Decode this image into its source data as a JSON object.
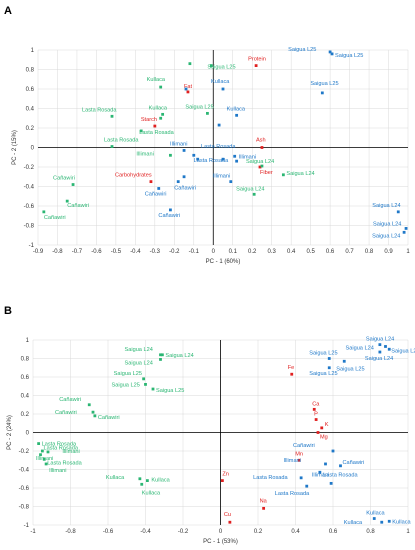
{
  "colors": {
    "green": "#2bb673",
    "blue": "#1f78c8",
    "red": "#e02020",
    "axis": "#000000",
    "grid": "#d9d9d9"
  },
  "chart_data": [
    {
      "type": "scatter",
      "panel": "A",
      "xlabel": "PC - 1 (60%)",
      "ylabel": "PC - 2 (15%)",
      "xlim": [
        -0.9,
        1.0
      ],
      "ylim": [
        -1.0,
        1.0
      ],
      "xticks": [
        -0.9,
        -0.8,
        -0.7,
        -0.6,
        -0.5,
        -0.4,
        -0.3,
        -0.2,
        -0.1,
        0,
        0.1,
        0.2,
        0.3,
        0.4,
        0.5,
        0.6,
        0.7,
        0.8,
        0.9,
        1
      ],
      "xtick_labels": [
        "-0.9",
        "-0.8",
        "-0.7",
        "-0.6",
        "-0.5",
        "-0.4",
        "-0.3",
        "-0.2",
        "-0.1",
        "0",
        "0.1",
        "0.2",
        "0.3",
        "0.4",
        "0.5",
        "0.6",
        "0.7",
        "0.8",
        "0.9",
        "1"
      ],
      "yticks": [
        -1,
        -0.8,
        -0.6,
        -0.4,
        -0.2,
        0,
        0.2,
        0.4,
        0.6,
        0.8,
        1
      ],
      "ytick_labels": [
        "-1",
        "-0.8",
        "-0.6",
        "-0.4",
        "-0.2",
        "0",
        "0.2",
        "0.4",
        "0.6",
        "0.8",
        "1"
      ],
      "points": [
        {
          "x": 0.22,
          "y": 0.84,
          "label": "Protein",
          "color": "red",
          "dx": -8,
          "dy": -5
        },
        {
          "x": -0.13,
          "y": 0.57,
          "label": "Fat",
          "color": "red",
          "dx": -4,
          "dy": -4
        },
        {
          "x": -0.3,
          "y": 0.22,
          "label": "Starch",
          "color": "red",
          "dx": -14,
          "dy": -5
        },
        {
          "x": -0.32,
          "y": -0.35,
          "label": "Carbohydrates",
          "color": "red",
          "dx": -36,
          "dy": -5
        },
        {
          "x": 0.25,
          "y": 0.0,
          "label": "Ash",
          "color": "red",
          "dx": -6,
          "dy": -6
        },
        {
          "x": 0.24,
          "y": -0.2,
          "label": "Fiber",
          "color": "red",
          "dx": 0,
          "dy": 7
        },
        {
          "x": 0.6,
          "y": 0.98,
          "label": "Saigua L25",
          "color": "blue",
          "dx": -42,
          "dy": -1
        },
        {
          "x": 0.61,
          "y": 0.96,
          "label": "Saigua L25",
          "color": "blue",
          "dx": 3,
          "dy": 3
        },
        {
          "x": 0.56,
          "y": 0.56,
          "label": "Saigua L25",
          "color": "blue",
          "dx": -12,
          "dy": -8
        },
        {
          "x": -0.14,
          "y": 0.6,
          "label": "",
          "color": "blue",
          "dx": 0,
          "dy": 0
        },
        {
          "x": 0.05,
          "y": 0.6,
          "label": "Kullaca",
          "color": "blue",
          "dx": -12,
          "dy": -6
        },
        {
          "x": 0.12,
          "y": 0.33,
          "label": "Kullaca",
          "color": "blue",
          "dx": -10,
          "dy": -5
        },
        {
          "x": 0.03,
          "y": 0.23,
          "label": "",
          "color": "blue",
          "dx": 0,
          "dy": 0
        },
        {
          "x": -0.15,
          "y": -0.03,
          "label": "Illimani",
          "color": "blue",
          "dx": -14,
          "dy": -5
        },
        {
          "x": -0.1,
          "y": -0.08,
          "label": "",
          "color": "blue",
          "dx": 0,
          "dy": 0
        },
        {
          "x": -0.08,
          "y": -0.12,
          "label": "Lasta Rosada",
          "color": "blue",
          "dx": -4,
          "dy": 3
        },
        {
          "x": 0.05,
          "y": -0.12,
          "label": "Lasta Rosada",
          "color": "blue",
          "dx": -22,
          "dy": -11
        },
        {
          "x": 0.11,
          "y": -0.09,
          "label": "Illimani",
          "color": "blue",
          "dx": 4,
          "dy": 2
        },
        {
          "x": 0.12,
          "y": -0.14,
          "label": "",
          "color": "blue",
          "dx": 0,
          "dy": 0
        },
        {
          "x": 0.09,
          "y": -0.35,
          "label": "Illimani",
          "color": "blue",
          "dx": -18,
          "dy": -4
        },
        {
          "x": -0.15,
          "y": -0.3,
          "label": "",
          "color": "blue",
          "dx": 0,
          "dy": 0
        },
        {
          "x": -0.18,
          "y": -0.35,
          "label": "Cañawiri",
          "color": "blue",
          "dx": -4,
          "dy": 8
        },
        {
          "x": -0.28,
          "y": -0.42,
          "label": "Cañawiri",
          "color": "blue",
          "dx": -14,
          "dy": 7
        },
        {
          "x": -0.22,
          "y": -0.64,
          "label": "Cañawiri",
          "color": "blue",
          "dx": -12,
          "dy": 7
        },
        {
          "x": 0.95,
          "y": -0.66,
          "label": "Saigua L24",
          "color": "blue",
          "dx": -26,
          "dy": -5
        },
        {
          "x": 0.99,
          "y": -0.83,
          "label": "Saigua L24",
          "color": "blue",
          "dx": -33,
          "dy": -3
        },
        {
          "x": 0.98,
          "y": -0.87,
          "label": "Saigua L24",
          "color": "blue",
          "dx": -32,
          "dy": 5
        },
        {
          "x": -0.12,
          "y": 0.86,
          "label": "",
          "color": "green",
          "dx": 0,
          "dy": 0
        },
        {
          "x": -0.01,
          "y": 0.84,
          "label": "Saigua L25",
          "color": "green",
          "dx": -4,
          "dy": 3
        },
        {
          "x": -0.27,
          "y": 0.62,
          "label": "Kullaca",
          "color": "green",
          "dx": -14,
          "dy": -6
        },
        {
          "x": -0.26,
          "y": 0.34,
          "label": "Kullaca",
          "color": "green",
          "dx": -14,
          "dy": -5
        },
        {
          "x": -0.27,
          "y": 0.3,
          "label": "",
          "color": "green",
          "dx": 0,
          "dy": 0
        },
        {
          "x": -0.03,
          "y": 0.35,
          "label": "Saigua L25",
          "color": "green",
          "dx": -22,
          "dy": -5
        },
        {
          "x": -0.52,
          "y": 0.32,
          "label": "Lasta Rosada",
          "color": "green",
          "dx": -30,
          "dy": -5
        },
        {
          "x": -0.37,
          "y": 0.17,
          "label": "Lasta Rosada",
          "color": "green",
          "dx": -2,
          "dy": 3
        },
        {
          "x": -0.52,
          "y": 0.01,
          "label": "Lasta Rosada",
          "color": "green",
          "dx": -8,
          "dy": -5
        },
        {
          "x": -0.22,
          "y": -0.08,
          "label": "Illimani",
          "color": "green",
          "dx": -34,
          "dy": 0
        },
        {
          "x": 0.25,
          "y": -0.19,
          "label": "Saigua L24",
          "color": "green",
          "dx": -16,
          "dy": -3
        },
        {
          "x": 0.36,
          "y": -0.28,
          "label": "Saigua L24",
          "color": "green",
          "dx": 3,
          "dy": 0
        },
        {
          "x": 0.21,
          "y": -0.48,
          "label": "Saigua L24",
          "color": "green",
          "dx": -18,
          "dy": -4
        },
        {
          "x": -0.72,
          "y": -0.38,
          "label": "Cañawiri",
          "color": "green",
          "dx": -20,
          "dy": -5
        },
        {
          "x": -0.75,
          "y": -0.55,
          "label": "Cañawiri",
          "color": "green",
          "dx": 0,
          "dy": 6
        },
        {
          "x": -0.87,
          "y": -0.66,
          "label": "Cañawiri",
          "color": "green",
          "dx": 0,
          "dy": 7
        }
      ]
    },
    {
      "type": "scatter",
      "panel": "B",
      "xlabel": "PC - 1 (53%)",
      "ylabel": "PC - 2 (24%)",
      "xlim": [
        -1.0,
        1.0
      ],
      "ylim": [
        -1.0,
        1.0
      ],
      "xticks": [
        -1,
        -0.8,
        -0.6,
        -0.4,
        -0.2,
        0,
        0.2,
        0.4,
        0.6,
        0.8,
        1
      ],
      "xtick_labels": [
        "-1",
        "-0.8",
        "-0.6",
        "-0.4",
        "-0.2",
        "0",
        "0.2",
        "0.4",
        "0.6",
        "0.8",
        "1"
      ],
      "yticks": [
        -1,
        -0.8,
        -0.6,
        -0.4,
        -0.2,
        0,
        0.2,
        0.4,
        0.6,
        0.8,
        1
      ],
      "ytick_labels": [
        "-1",
        "-0.8",
        "-0.6",
        "-0.4",
        "-0.2",
        "0",
        "0.2",
        "0.4",
        "0.6",
        "0.8",
        "1"
      ],
      "points": [
        {
          "x": 0.38,
          "y": 0.63,
          "label": "Fe",
          "color": "red",
          "dx": -4,
          "dy": -5
        },
        {
          "x": 0.5,
          "y": 0.25,
          "label": "Ca",
          "color": "red",
          "dx": -2,
          "dy": -4
        },
        {
          "x": 0.51,
          "y": 0.14,
          "label": "P",
          "color": "red",
          "dx": -2,
          "dy": -4
        },
        {
          "x": 0.54,
          "y": 0.05,
          "label": "K",
          "color": "red",
          "dx": 3,
          "dy": -2
        },
        {
          "x": 0.52,
          "y": 0.0,
          "label": "Mg",
          "color": "red",
          "dx": 2,
          "dy": 6
        },
        {
          "x": 0.42,
          "y": -0.3,
          "label": "Mn",
          "color": "red",
          "dx": -4,
          "dy": -5
        },
        {
          "x": 0.01,
          "y": -0.52,
          "label": "Zn",
          "color": "red",
          "dx": 0,
          "dy": -5
        },
        {
          "x": 0.23,
          "y": -0.82,
          "label": "Na",
          "color": "red",
          "dx": -4,
          "dy": -6
        },
        {
          "x": 0.05,
          "y": -0.97,
          "label": "Cu",
          "color": "red",
          "dx": -6,
          "dy": -6
        },
        {
          "x": 0.85,
          "y": 0.95,
          "label": "Saigua L24",
          "color": "blue",
          "dx": -14,
          "dy": -4
        },
        {
          "x": 0.88,
          "y": 0.93,
          "label": "Saigua L24",
          "color": "blue",
          "dx": -40,
          "dy": 3
        },
        {
          "x": 0.9,
          "y": 0.9,
          "label": "Saigua L24",
          "color": "blue",
          "dx": 2,
          "dy": 3
        },
        {
          "x": 0.85,
          "y": 0.87,
          "label": "Saigua L24",
          "color": "blue",
          "dx": -15,
          "dy": 8
        },
        {
          "x": 0.58,
          "y": 0.8,
          "label": "Saigua L25",
          "color": "blue",
          "dx": -20,
          "dy": -4
        },
        {
          "x": 0.66,
          "y": 0.77,
          "label": "Saigua L25",
          "color": "blue",
          "dx": -8,
          "dy": 9
        },
        {
          "x": 0.58,
          "y": 0.7,
          "label": "Saigua L25",
          "color": "blue",
          "dx": -20,
          "dy": 7
        },
        {
          "x": 0.6,
          "y": -0.2,
          "label": "Cañawiri",
          "color": "blue",
          "dx": -40,
          "dy": -4
        },
        {
          "x": 0.64,
          "y": -0.36,
          "label": "Cañawiri",
          "color": "blue",
          "dx": 2,
          "dy": -2
        },
        {
          "x": 0.56,
          "y": -0.34,
          "label": "Illimani",
          "color": "blue",
          "dx": -42,
          "dy": -2
        },
        {
          "x": 0.53,
          "y": -0.43,
          "label": "Illimani",
          "color": "blue",
          "dx": -8,
          "dy": 4
        },
        {
          "x": 0.43,
          "y": -0.49,
          "label": "Lasta Rosada",
          "color": "blue",
          "dx": -48,
          "dy": 1
        },
        {
          "x": 0.46,
          "y": -0.58,
          "label": "Lasta Rosada",
          "color": "blue",
          "dx": -32,
          "dy": 9
        },
        {
          "x": 0.59,
          "y": -0.55,
          "label": "Lasta Rosada",
          "color": "blue",
          "dx": -8,
          "dy": -7
        },
        {
          "x": 0.82,
          "y": -0.93,
          "label": "Kullaca",
          "color": "blue",
          "dx": -8,
          "dy": -4
        },
        {
          "x": 0.86,
          "y": -0.97,
          "label": "Kullaca",
          "color": "blue",
          "dx": -38,
          "dy": 2
        },
        {
          "x": 0.9,
          "y": -0.96,
          "label": "Kullaca",
          "color": "blue",
          "dx": 3,
          "dy": 2
        },
        {
          "x": -0.32,
          "y": 0.84,
          "label": "Saigua L24",
          "color": "green",
          "dx": -36,
          "dy": -4
        },
        {
          "x": -0.31,
          "y": 0.84,
          "label": "Saigua L24",
          "color": "green",
          "dx": 3,
          "dy": 2
        },
        {
          "x": -0.32,
          "y": 0.79,
          "label": "Saigua L24",
          "color": "green",
          "dx": -36,
          "dy": 5
        },
        {
          "x": -0.41,
          "y": 0.58,
          "label": "Saigua L25",
          "color": "green",
          "dx": -30,
          "dy": -4
        },
        {
          "x": -0.4,
          "y": 0.52,
          "label": "Saigua L25",
          "color": "green",
          "dx": -34,
          "dy": 2
        },
        {
          "x": -0.36,
          "y": 0.47,
          "label": "Saigua L25",
          "color": "green",
          "dx": 3,
          "dy": 3
        },
        {
          "x": -0.7,
          "y": 0.3,
          "label": "Cañawiri",
          "color": "green",
          "dx": -30,
          "dy": -4
        },
        {
          "x": -0.68,
          "y": 0.22,
          "label": "Cañawiri",
          "color": "green",
          "dx": -38,
          "dy": 2
        },
        {
          "x": -0.67,
          "y": 0.18,
          "label": "Cañawiri",
          "color": "green",
          "dx": 3,
          "dy": 3
        },
        {
          "x": -0.97,
          "y": -0.12,
          "label": "Lasta Rosada",
          "color": "green",
          "dx": 3,
          "dy": 2
        },
        {
          "x": -0.95,
          "y": -0.2,
          "label": "Illimani",
          "color": "green",
          "dx": 20,
          "dy": 2
        },
        {
          "x": -0.92,
          "y": -0.21,
          "label": "Illimani",
          "color": "green",
          "dx": -12,
          "dy": 8
        },
        {
          "x": -0.96,
          "y": -0.24,
          "label": "Lasta Rosada",
          "color": "green",
          "dx": 3,
          "dy": -5
        },
        {
          "x": -0.94,
          "y": -0.29,
          "label": "Lasta Rosada",
          "color": "green",
          "dx": 3,
          "dy": 5
        },
        {
          "x": -0.93,
          "y": -0.34,
          "label": "Illimani",
          "color": "green",
          "dx": 3,
          "dy": 8
        },
        {
          "x": -0.43,
          "y": -0.5,
          "label": "Kullaca",
          "color": "green",
          "dx": -34,
          "dy": 0
        },
        {
          "x": -0.39,
          "y": -0.52,
          "label": "Kullaca",
          "color": "green",
          "dx": 4,
          "dy": 1
        },
        {
          "x": -0.42,
          "y": -0.56,
          "label": "Kullaca",
          "color": "green",
          "dx": 0,
          "dy": 10
        }
      ]
    }
  ]
}
